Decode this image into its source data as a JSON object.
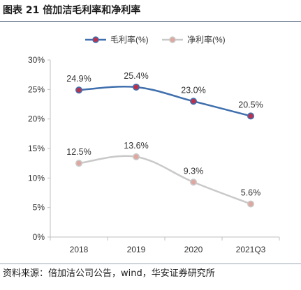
{
  "figure": {
    "title": "图表 21 倍加洁毛利率和净利率",
    "source": "资料来源：倍加洁公司公告，wind，华安证券研究所"
  },
  "colors": {
    "gross": "#3f6fad",
    "gross_marker_fill": "#c0304b",
    "net": "#c9c9c9",
    "net_marker_fill": "#e0a6a0",
    "axis": "#bfbfbf",
    "text": "#333333"
  },
  "chart_data": {
    "type": "line",
    "categories": [
      "2018",
      "2019",
      "2020",
      "2021Q3"
    ],
    "series": [
      {
        "name": "毛利率(%)",
        "values": [
          24.9,
          25.4,
          23.0,
          20.5
        ],
        "labels": [
          "24.9%",
          "25.4%",
          "23.0%",
          "20.5%"
        ]
      },
      {
        "name": "净利率(%)",
        "values": [
          12.5,
          13.6,
          9.3,
          5.6
        ],
        "labels": [
          "12.5%",
          "13.6%",
          "9.3%",
          "5.6%"
        ]
      }
    ],
    "y_ticks": [
      "0%",
      "5%",
      "10%",
      "15%",
      "20%",
      "25%",
      "30%"
    ],
    "ylim": [
      0,
      30
    ],
    "legend_position": "top",
    "grid": false,
    "smooth": true
  }
}
